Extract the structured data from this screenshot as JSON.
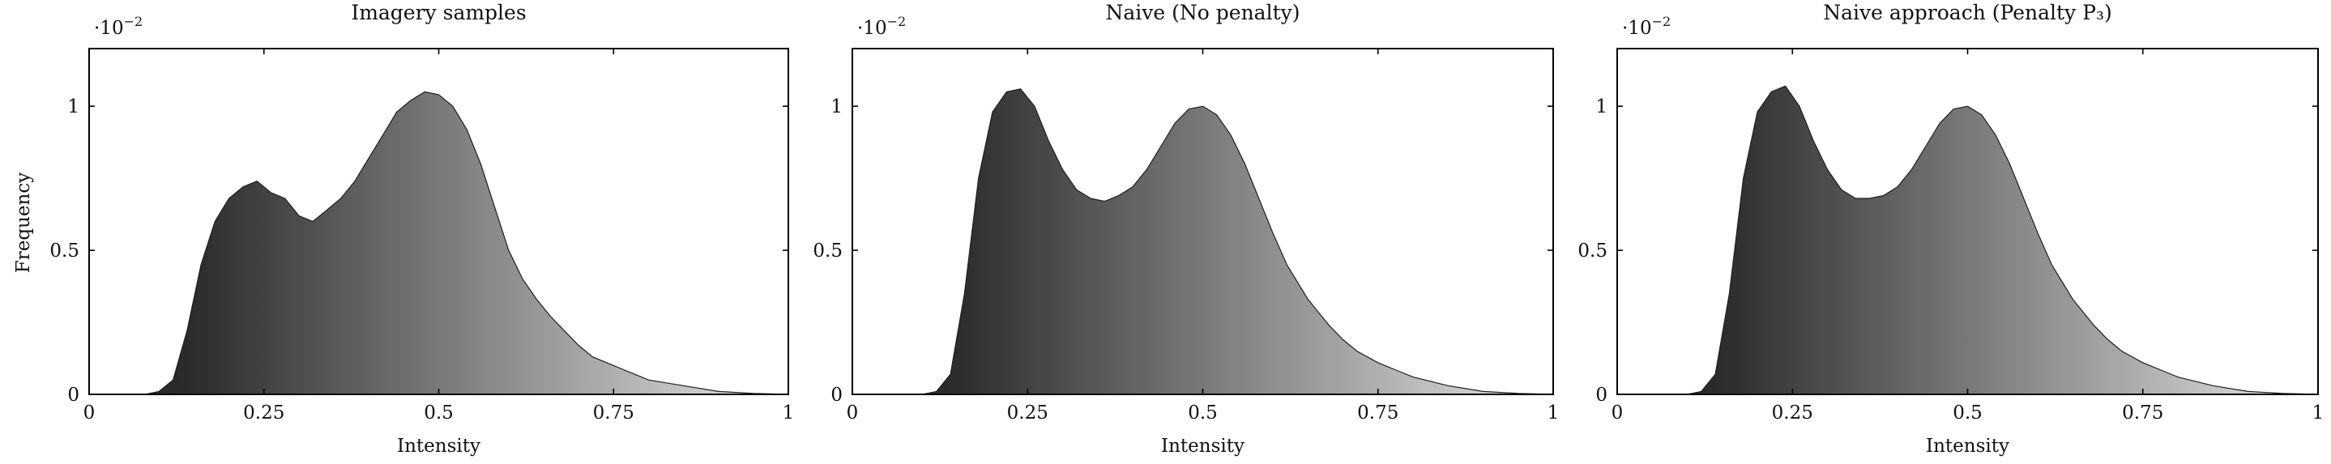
{
  "figure": {
    "ylabel": "Frequency",
    "y_multiplier": "·10",
    "y_multiplier_exp": "−2"
  },
  "colors": {
    "gradient_start": "#232323",
    "gradient_end": "#e6e6e6",
    "axis": "#000000"
  },
  "chart_data": [
    {
      "type": "area",
      "title": "Imagery samples",
      "xlabel": "Intensity",
      "ylabel": "Frequency",
      "xlim": [
        0,
        1
      ],
      "ylim": [
        0,
        1.2
      ],
      "y_scale_note": "·10^−2",
      "xticks": [
        "0",
        "0.25",
        "0.5",
        "0.75",
        "1"
      ],
      "yticks": [
        "0",
        "0.5",
        "1"
      ],
      "x": [
        0.0,
        0.08,
        0.1,
        0.12,
        0.14,
        0.16,
        0.18,
        0.2,
        0.22,
        0.24,
        0.26,
        0.28,
        0.3,
        0.32,
        0.34,
        0.36,
        0.38,
        0.4,
        0.42,
        0.44,
        0.46,
        0.48,
        0.5,
        0.52,
        0.54,
        0.56,
        0.58,
        0.6,
        0.62,
        0.64,
        0.66,
        0.68,
        0.7,
        0.72,
        0.75,
        0.78,
        0.8,
        0.85,
        0.9,
        0.95,
        1.0
      ],
      "values": [
        0.0,
        0.0,
        0.01,
        0.05,
        0.22,
        0.45,
        0.6,
        0.68,
        0.72,
        0.74,
        0.7,
        0.68,
        0.62,
        0.6,
        0.64,
        0.68,
        0.74,
        0.82,
        0.9,
        0.98,
        1.02,
        1.05,
        1.04,
        1.0,
        0.92,
        0.8,
        0.65,
        0.5,
        0.4,
        0.33,
        0.27,
        0.22,
        0.17,
        0.13,
        0.1,
        0.07,
        0.05,
        0.03,
        0.01,
        0.003,
        0.0
      ]
    },
    {
      "type": "area",
      "title": "Naive (No penalty)",
      "xlabel": "Intensity",
      "ylabel": "",
      "xlim": [
        0,
        1
      ],
      "ylim": [
        0,
        1.2
      ],
      "y_scale_note": "·10^−2",
      "xticks": [
        "0",
        "0.25",
        "0.5",
        "0.75",
        "1"
      ],
      "yticks": [
        "0",
        "0.5",
        "1"
      ],
      "x": [
        0.0,
        0.1,
        0.12,
        0.14,
        0.16,
        0.18,
        0.2,
        0.22,
        0.24,
        0.26,
        0.28,
        0.3,
        0.32,
        0.34,
        0.36,
        0.38,
        0.4,
        0.42,
        0.44,
        0.46,
        0.48,
        0.5,
        0.52,
        0.54,
        0.56,
        0.58,
        0.6,
        0.62,
        0.65,
        0.68,
        0.7,
        0.72,
        0.75,
        0.78,
        0.8,
        0.85,
        0.9,
        0.95,
        1.0
      ],
      "values": [
        0.0,
        0.0,
        0.01,
        0.07,
        0.35,
        0.75,
        0.98,
        1.05,
        1.06,
        1.0,
        0.88,
        0.78,
        0.71,
        0.68,
        0.67,
        0.69,
        0.72,
        0.78,
        0.86,
        0.94,
        0.99,
        1.0,
        0.97,
        0.9,
        0.8,
        0.68,
        0.56,
        0.45,
        0.33,
        0.24,
        0.19,
        0.15,
        0.11,
        0.08,
        0.06,
        0.03,
        0.01,
        0.003,
        0.0
      ]
    },
    {
      "type": "area",
      "title": "Naive approach (Penalty P₃)",
      "xlabel": "Intensity",
      "ylabel": "",
      "xlim": [
        0,
        1
      ],
      "ylim": [
        0,
        1.2
      ],
      "y_scale_note": "·10^−2",
      "xticks": [
        "0",
        "0.25",
        "0.5",
        "0.75",
        "1"
      ],
      "yticks": [
        "0",
        "0.5",
        "1"
      ],
      "x": [
        0.0,
        0.1,
        0.12,
        0.14,
        0.16,
        0.18,
        0.2,
        0.22,
        0.24,
        0.26,
        0.28,
        0.3,
        0.32,
        0.34,
        0.36,
        0.38,
        0.4,
        0.42,
        0.44,
        0.46,
        0.48,
        0.5,
        0.52,
        0.54,
        0.56,
        0.58,
        0.6,
        0.62,
        0.65,
        0.68,
        0.7,
        0.72,
        0.75,
        0.78,
        0.8,
        0.85,
        0.9,
        0.95,
        1.0
      ],
      "values": [
        0.0,
        0.0,
        0.01,
        0.07,
        0.35,
        0.75,
        0.98,
        1.05,
        1.07,
        1.0,
        0.88,
        0.78,
        0.71,
        0.68,
        0.68,
        0.69,
        0.72,
        0.78,
        0.86,
        0.94,
        0.99,
        1.0,
        0.97,
        0.9,
        0.8,
        0.68,
        0.56,
        0.45,
        0.33,
        0.24,
        0.19,
        0.15,
        0.11,
        0.08,
        0.06,
        0.03,
        0.01,
        0.003,
        0.0
      ]
    }
  ]
}
